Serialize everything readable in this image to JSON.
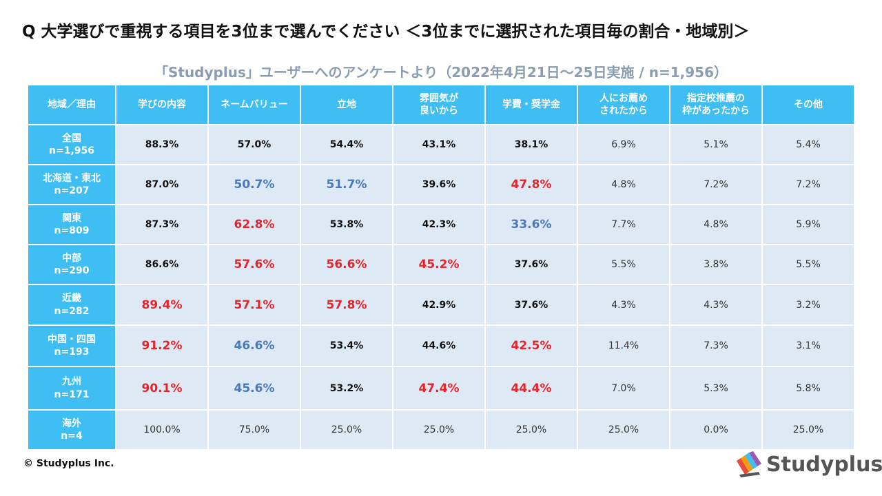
{
  "title": "Q 大学選びで重視する項目を3位まで選んでください ＜3位までに選択された項目毎の割合・地域別＞",
  "subtitle": "「Studyplus」ユーザーへのアンケートより（2022年4月21日〜25日実施 / n=1,956）",
  "copyright": "© Studyplus Inc.",
  "logo_text": "Studyplus",
  "colors": {
    "header_bg": "#3ebef2",
    "cell_bg": "#dde9f5",
    "highlight_high": "#e8232a",
    "highlight_low": "#4a78bb"
  },
  "chart_data": {
    "type": "table",
    "columns": [
      "地域／理由",
      "学びの内容",
      "ネームバリュー",
      "立地",
      "雰囲気が良いから",
      "学費・奨学金",
      "人にお薦めされたから",
      "指定校推薦の枠があったから",
      "その他"
    ],
    "rows": [
      {
        "region": "全国",
        "n": "n=1,956",
        "values": [
          "88.3%",
          "57.0%",
          "54.4%",
          "43.1%",
          "38.1%",
          "6.9%",
          "5.1%",
          "5.4%"
        ],
        "marks": [
          "b",
          "b",
          "b",
          "b",
          "b",
          "p",
          "p",
          "p"
        ]
      },
      {
        "region": "北海道・東北",
        "n": "n=207",
        "values": [
          "87.0%",
          "50.7%",
          "51.7%",
          "39.6%",
          "47.8%",
          "4.8%",
          "7.2%",
          "7.2%"
        ],
        "marks": [
          "b",
          "blue",
          "blue",
          "b",
          "red",
          "p",
          "p",
          "p"
        ]
      },
      {
        "region": "関東",
        "n": "n=809",
        "values": [
          "87.3%",
          "62.8%",
          "53.8%",
          "42.3%",
          "33.6%",
          "7.7%",
          "4.8%",
          "5.9%"
        ],
        "marks": [
          "b",
          "red",
          "b",
          "b",
          "blue",
          "p",
          "p",
          "p"
        ]
      },
      {
        "region": "中部",
        "n": "n=290",
        "values": [
          "86.6%",
          "57.6%",
          "56.6%",
          "45.2%",
          "37.6%",
          "5.5%",
          "3.8%",
          "5.5%"
        ],
        "marks": [
          "b",
          "red",
          "red",
          "red",
          "b",
          "p",
          "p",
          "p"
        ]
      },
      {
        "region": "近畿",
        "n": "n=282",
        "values": [
          "89.4%",
          "57.1%",
          "57.8%",
          "42.9%",
          "37.6%",
          "4.3%",
          "4.3%",
          "3.2%"
        ],
        "marks": [
          "red",
          "red",
          "red",
          "b",
          "b",
          "p",
          "p",
          "p"
        ]
      },
      {
        "region": "中国・四国",
        "n": "n=193",
        "values": [
          "91.2%",
          "46.6%",
          "53.4%",
          "44.6%",
          "42.5%",
          "11.4%",
          "7.3%",
          "3.1%"
        ],
        "marks": [
          "red",
          "blue",
          "b",
          "b",
          "red",
          "p",
          "p",
          "p"
        ]
      },
      {
        "region": "九州",
        "n": "n=171",
        "values": [
          "90.1%",
          "45.6%",
          "53.2%",
          "47.4%",
          "44.4%",
          "7.0%",
          "5.3%",
          "5.8%"
        ],
        "marks": [
          "red",
          "blue",
          "b",
          "red",
          "red",
          "p",
          "p",
          "p"
        ]
      },
      {
        "region": "海外",
        "n": "n=4",
        "values": [
          "100.0%",
          "75.0%",
          "25.0%",
          "25.0%",
          "25.0%",
          "25.0%",
          "0.0%",
          "25.0%"
        ],
        "marks": [
          "p",
          "p",
          "p",
          "p",
          "p",
          "p",
          "p",
          "p"
        ]
      }
    ]
  }
}
